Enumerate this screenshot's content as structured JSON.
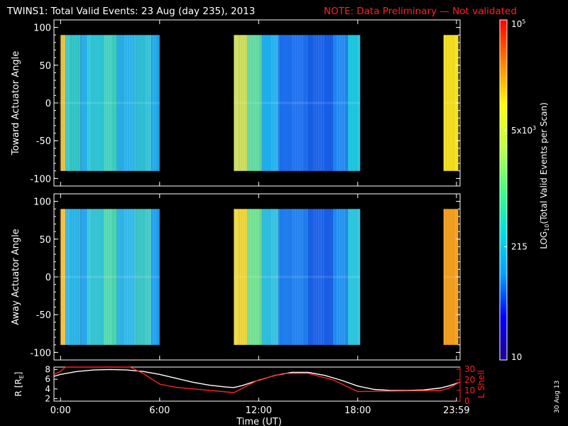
{
  "title": {
    "main": "TWINS1: Total Valid Events: 23 Aug (day 235), 2013",
    "note": "NOTE: Data Preliminary — Not validated",
    "note_color": "#ff2020"
  },
  "footer": {
    "date_stamp": "30 Aug 13"
  },
  "chart_data": [
    {
      "type": "heatmap",
      "panel": "toward",
      "ylabel": "Toward Actuator Angle",
      "ylim": [
        -110,
        110
      ],
      "yticks": [
        "100",
        "50",
        "0",
        "-50",
        "-100"
      ],
      "angle_range": [
        -90,
        90
      ],
      "data_intervals_hours": [
        [
          -0.1,
          6.0
        ],
        [
          10.5,
          18.15
        ],
        [
          23.2,
          24.1
        ]
      ],
      "color_strips_hours": [
        [
          0.0,
          0.3,
          "#e0c040"
        ],
        [
          0.3,
          1.2,
          "#35c8c8"
        ],
        [
          1.2,
          1.6,
          "#20a8e8"
        ],
        [
          1.6,
          2.6,
          "#30c8d8"
        ],
        [
          2.6,
          3.4,
          "#40d0c0"
        ],
        [
          3.4,
          4.5,
          "#28b0e8"
        ],
        [
          4.5,
          5.5,
          "#30c0d8"
        ],
        [
          5.5,
          6.0,
          "#20a8e8"
        ],
        [
          10.5,
          11.3,
          "#d0e060"
        ],
        [
          11.3,
          12.2,
          "#60d8a0"
        ],
        [
          12.2,
          13.2,
          "#20b0f0"
        ],
        [
          13.2,
          15.0,
          "#1e70f0"
        ],
        [
          15.0,
          16.5,
          "#1860e8"
        ],
        [
          16.5,
          17.4,
          "#2088f0"
        ],
        [
          17.4,
          18.15,
          "#20c8e0"
        ],
        [
          23.2,
          24.1,
          "#f4e020"
        ]
      ]
    },
    {
      "type": "heatmap",
      "panel": "away",
      "ylabel": "Away Actuator Angle",
      "ylim": [
        -110,
        110
      ],
      "yticks": [
        "100",
        "50",
        "0",
        "-50",
        "-100"
      ],
      "angle_range": [
        -90,
        90
      ],
      "data_intervals_hours": [
        [
          -0.1,
          6.0
        ],
        [
          10.5,
          18.15
        ],
        [
          23.2,
          24.1
        ]
      ],
      "color_strips_hours": [
        [
          0.0,
          0.3,
          "#f0c040"
        ],
        [
          0.3,
          1.2,
          "#30b8e8"
        ],
        [
          1.2,
          1.6,
          "#20a0f0"
        ],
        [
          1.6,
          2.6,
          "#38c8d8"
        ],
        [
          2.6,
          3.4,
          "#50d8b0"
        ],
        [
          3.4,
          4.5,
          "#30b8e8"
        ],
        [
          4.5,
          5.5,
          "#40c8c8"
        ],
        [
          5.5,
          6.0,
          "#20a0f0"
        ],
        [
          10.5,
          11.3,
          "#f0d840"
        ],
        [
          11.3,
          12.2,
          "#70e090"
        ],
        [
          12.2,
          13.2,
          "#30c0e0"
        ],
        [
          13.2,
          15.0,
          "#2080f0"
        ],
        [
          15.0,
          16.5,
          "#1a60e8"
        ],
        [
          16.5,
          17.4,
          "#2090f0"
        ],
        [
          17.4,
          18.15,
          "#30c8e0"
        ],
        [
          23.2,
          24.1,
          "#f4a020"
        ]
      ]
    },
    {
      "type": "line",
      "panel": "orbit",
      "xlabel": "Time (UT)",
      "xlim": [
        -0.4,
        24.2
      ],
      "xticks": [
        {
          "value": 0,
          "label": "0:00"
        },
        {
          "value": 6,
          "label": "6:00"
        },
        {
          "value": 12,
          "label": "12:00"
        },
        {
          "value": 18,
          "label": "18:00"
        },
        {
          "value": 23.98,
          "label": "23:59"
        }
      ],
      "left_axis": {
        "label": "R [RE]",
        "label_main": "R [R",
        "label_sub": "E",
        "label_end": "]",
        "ylim": [
          1.5,
          8.5
        ],
        "ticks": [
          "8",
          "6",
          "4",
          "2"
        ],
        "color": "#ffffff"
      },
      "right_axis": {
        "label": "L Shell",
        "ylim": [
          0,
          32
        ],
        "ticks": [
          "30",
          "20",
          "10",
          "0"
        ],
        "color": "#ff2020"
      },
      "series": [
        {
          "axis": "left",
          "color": "#ffffff",
          "x": [
            -0.4,
            0,
            1,
            2,
            3,
            4,
            5,
            6,
            7,
            8,
            9,
            10,
            10.5,
            11,
            12,
            13,
            14,
            15,
            16,
            17,
            18,
            19,
            20,
            21,
            22,
            23,
            23.5,
            24.2
          ],
          "y": [
            6.6,
            7.0,
            7.6,
            7.9,
            8.0,
            7.9,
            7.6,
            7.0,
            6.2,
            5.4,
            4.8,
            4.4,
            4.3,
            4.7,
            5.8,
            6.8,
            7.4,
            7.4,
            6.8,
            5.8,
            4.6,
            3.9,
            3.7,
            3.7,
            3.8,
            4.2,
            4.6,
            5.4
          ]
        },
        {
          "axis": "right",
          "color": "#ff2020",
          "x": [
            -0.4,
            0,
            0.3,
            0.6,
            3.2,
            4.2,
            5.0,
            6.0,
            7.0,
            10.5,
            12.0,
            13.5,
            15.0,
            16.5,
            18.0,
            23.0,
            23.5,
            24.2
          ],
          "y": [
            25,
            28,
            32,
            32,
            32,
            32,
            26,
            16,
            13,
            8,
            20,
            26,
            26,
            20,
            9,
            10,
            12,
            18
          ]
        }
      ]
    },
    {
      "type": "colorbar",
      "label_main": "LOG",
      "label_sub": "10",
      "label_rest": "(Total Valid Events per Scan)",
      "scale": "log",
      "range": [
        10,
        100000
      ],
      "ticks": [
        {
          "value": 10,
          "label": "10"
        },
        {
          "value": 215,
          "label": "215"
        },
        {
          "value": 5000,
          "label": "5x10",
          "exp": "3"
        },
        {
          "value": 100000,
          "label": "10",
          "exp": "5"
        }
      ],
      "stops": [
        "#200090",
        "#0000ff",
        "#00a0ff",
        "#00e0e0",
        "#40ff80",
        "#c0ff40",
        "#ffff00",
        "#ff8000",
        "#ff0000"
      ]
    }
  ]
}
